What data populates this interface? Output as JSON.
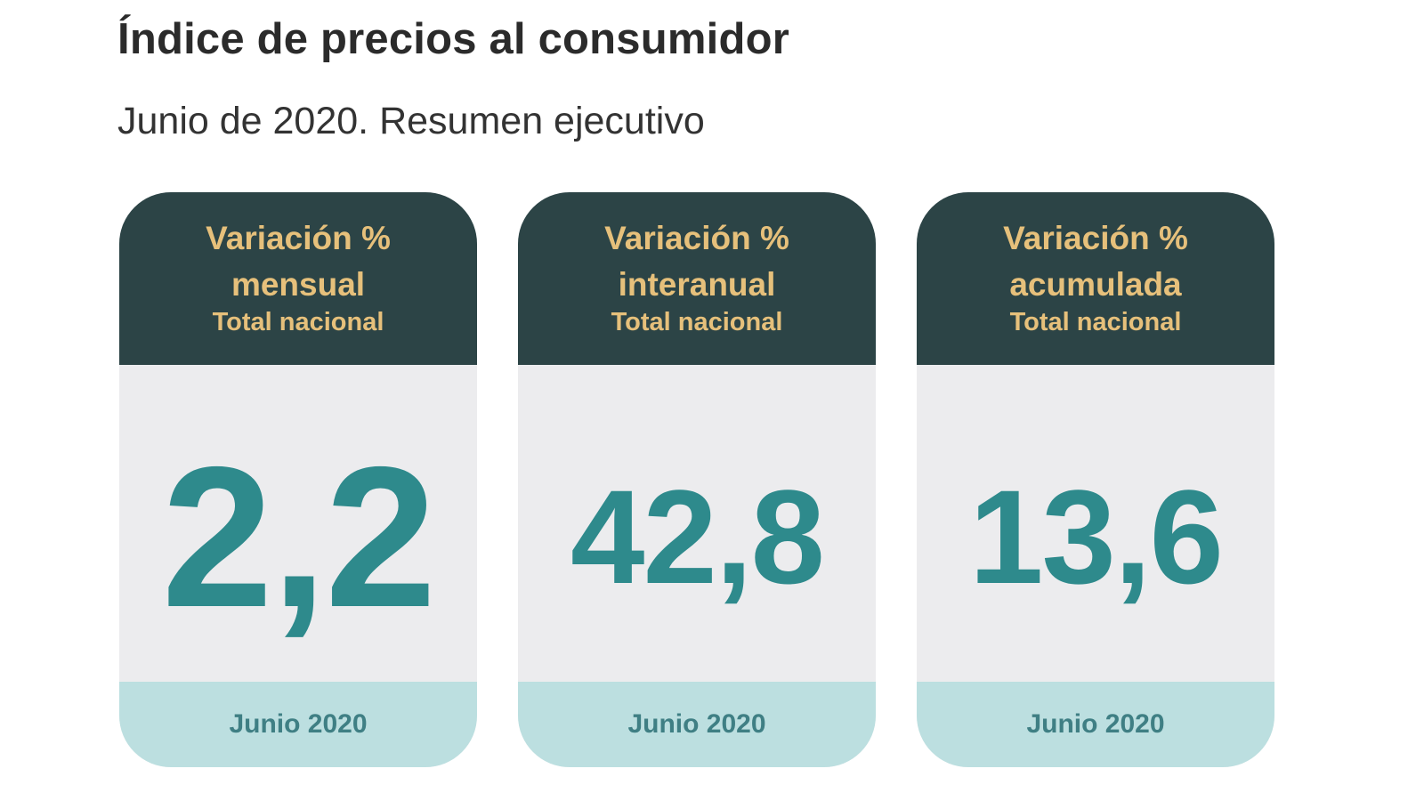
{
  "header": {
    "title": "Índice de precios al consumidor",
    "subtitle": "Junio de 2020. Resumen ejecutivo"
  },
  "cards": [
    {
      "label_line1": "Variación %",
      "label_line2": "mensual",
      "scope": "Total nacional",
      "value": "2,2",
      "period": "Junio 2020"
    },
    {
      "label_line1": "Variación %",
      "label_line2": "interanual",
      "scope": "Total nacional",
      "value": "42,8",
      "period": "Junio 2020"
    },
    {
      "label_line1": "Variación %",
      "label_line2": "acumulada",
      "scope": "Total nacional",
      "value": "13,6",
      "period": "Junio 2020"
    }
  ],
  "colors": {
    "header_bg": "#2c4446",
    "header_text": "#e6c07b",
    "value_text": "#2e8a8c",
    "body_bg": "#ececee",
    "footer_bg": "#bcdfe0",
    "footer_text": "#3f7f84"
  }
}
